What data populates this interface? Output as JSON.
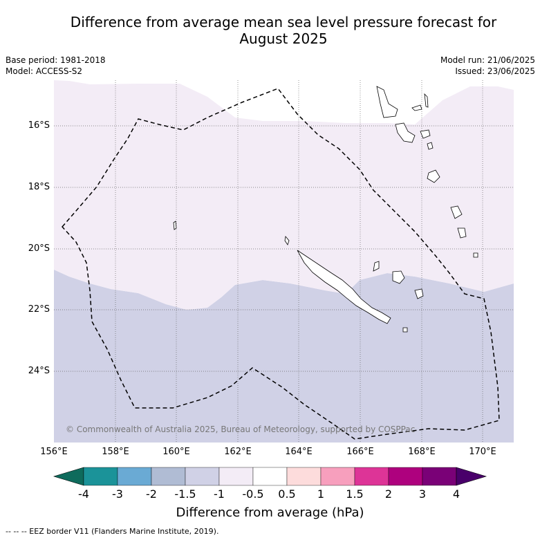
{
  "title_line1": "Difference from average mean sea level pressure forecast for",
  "title_line2": "August 2025",
  "base_period": "Base period: 1981-2018",
  "model": "Model: ACCESS-S2",
  "model_run": "Model run: 21/06/2025",
  "issued": "Issued: 23/06/2025",
  "copyright": "© Commonwealth of Australia 2025, Bureau of Meteorology, supported by COSPPac",
  "footnote": "--  --  -- EEZ border V11 (Flanders Marine Institute, 2019).",
  "colorbar_label": "Difference from average (hPa)",
  "colorbar_ticks": [
    "-4",
    "-3",
    "-2",
    "-1.5",
    "-1",
    "-0.5",
    "0.5",
    "1",
    "1.5",
    "2",
    "3",
    "4"
  ],
  "colorbar_colors": [
    "#0e6b5c",
    "#1b9399",
    "#6aaad4",
    "#b0bcd4",
    "#d0d1e6",
    "#f3ecf6",
    "#ffffff",
    "#fddcdc",
    "#f79fbd",
    "#dd3497",
    "#ae017e",
    "#7a0177",
    "#49006a"
  ],
  "lat_labels": [
    "16°S",
    "18°S",
    "20°S",
    "22°S",
    "24°S"
  ],
  "lon_labels": [
    "156°E",
    "158°E",
    "160°E",
    "162°E",
    "164°E",
    "166°E",
    "168°E",
    "170°E"
  ],
  "legend_labels": {
    "neutral": "-0.5 to 0.5 hPa",
    "weak_negative": "-1 to -0.5 hPa",
    "moderate_negative": "-1.5 to -1 hPa"
  },
  "map_colors": {
    "light_zone": "#f3ecf6",
    "mid_zone": "#d0d1e6",
    "grid": "#555555",
    "eez": "#000000"
  }
}
